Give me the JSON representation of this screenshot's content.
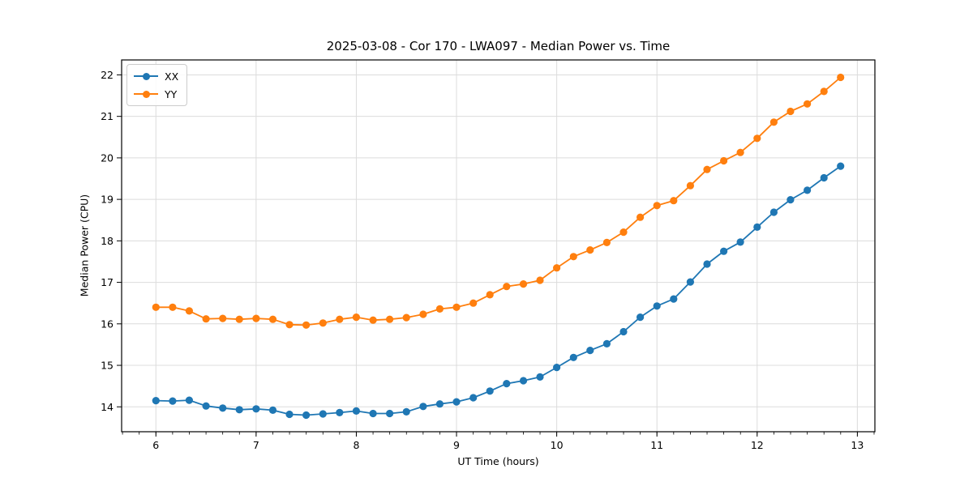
{
  "figure": {
    "background": "#ffffff",
    "text_color": "#000000",
    "grid_color": "#dcdcdc",
    "spine_color": "#000000"
  },
  "chart_data": {
    "type": "line",
    "title": "2025-03-08 - Cor 170 - LWA097 - Median Power vs. Time",
    "xlabel": "UT Time (hours)",
    "ylabel": "Median Power (CPU)",
    "xlim": [
      5.658,
      13.175
    ],
    "ylim": [
      13.4,
      22.36
    ],
    "x_ticks": [
      6,
      7,
      8,
      9,
      10,
      11,
      12,
      13
    ],
    "y_ticks": [
      14,
      15,
      16,
      17,
      18,
      19,
      20,
      21,
      22
    ],
    "x_minor_step": 0.16667,
    "grid": true,
    "legend_position": "upper-left",
    "marker": "o",
    "x": [
      6.0,
      6.167,
      6.333,
      6.5,
      6.667,
      6.833,
      7.0,
      7.167,
      7.333,
      7.5,
      7.667,
      7.833,
      8.0,
      8.167,
      8.333,
      8.5,
      8.667,
      8.833,
      9.0,
      9.167,
      9.333,
      9.5,
      9.667,
      9.833,
      10.0,
      10.167,
      10.333,
      10.5,
      10.667,
      10.833,
      11.0,
      11.167,
      11.333,
      11.5,
      11.667,
      11.833,
      12.0,
      12.167,
      12.333,
      12.5,
      12.667,
      12.833
    ],
    "series": [
      {
        "name": "XX",
        "color": "#1f77b4",
        "values": [
          14.15,
          14.14,
          14.16,
          14.02,
          13.97,
          13.93,
          13.95,
          13.92,
          13.82,
          13.8,
          13.83,
          13.86,
          13.9,
          13.84,
          13.84,
          13.88,
          14.01,
          14.07,
          14.12,
          14.22,
          14.38,
          14.56,
          14.63,
          14.72,
          14.95,
          15.19,
          15.36,
          15.52,
          15.81,
          16.16,
          16.43,
          16.6,
          17.01,
          17.44,
          17.75,
          17.97,
          18.33,
          18.69,
          18.99,
          19.22,
          19.52,
          19.8
        ]
      },
      {
        "name": "YY",
        "color": "#ff7f0e",
        "values": [
          16.4,
          16.4,
          16.31,
          16.12,
          16.13,
          16.11,
          16.13,
          16.11,
          15.98,
          15.97,
          16.02,
          16.11,
          16.16,
          16.09,
          16.11,
          16.15,
          16.23,
          16.36,
          16.4,
          16.5,
          16.7,
          16.9,
          16.96,
          17.05,
          17.35,
          17.62,
          17.78,
          17.96,
          18.21,
          18.57,
          18.85,
          18.97,
          19.33,
          19.72,
          19.93,
          20.13,
          20.47,
          20.86,
          21.12,
          21.3,
          21.6,
          21.94
        ]
      }
    ]
  }
}
